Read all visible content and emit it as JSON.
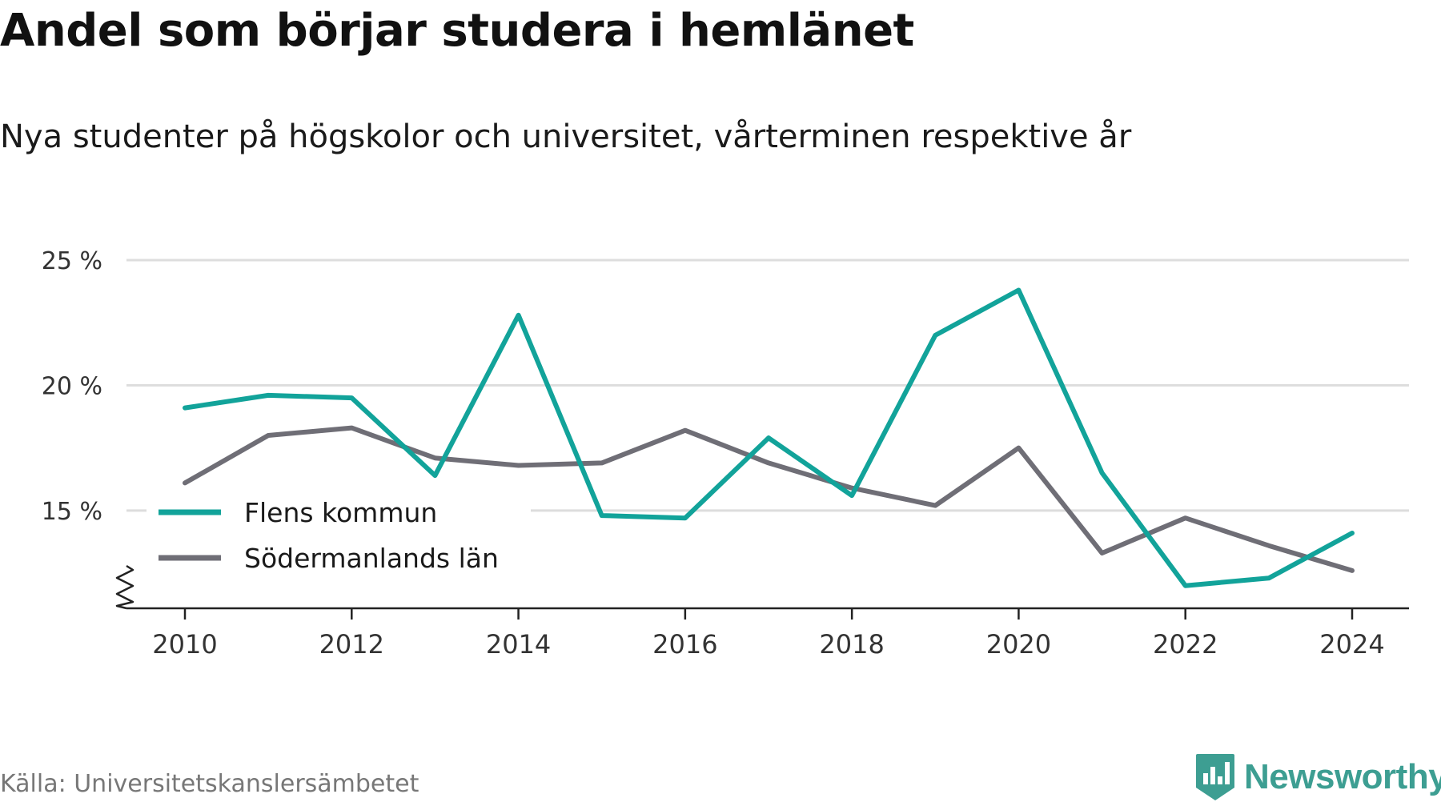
{
  "chart_data": {
    "type": "line",
    "title": "Andel som börjar studera i hemlänet",
    "subtitle": "Nya studenter på högskolor och universitet, vårterminen respektive år",
    "x": [
      2010,
      2011,
      2012,
      2013,
      2014,
      2015,
      2016,
      2017,
      2018,
      2019,
      2020,
      2021,
      2022,
      2023,
      2024
    ],
    "series": [
      {
        "name": "Flens kommun",
        "color": "#12a39a",
        "values": [
          19.1,
          19.6,
          19.5,
          16.4,
          22.8,
          14.8,
          14.7,
          17.9,
          15.6,
          22.0,
          23.8,
          16.5,
          12.0,
          12.3,
          14.1
        ]
      },
      {
        "name": "Södermanlands län",
        "color": "#6f6e76",
        "values": [
          16.1,
          18.0,
          18.3,
          17.1,
          16.8,
          16.9,
          18.2,
          16.9,
          15.9,
          15.2,
          17.5,
          13.3,
          14.7,
          13.6,
          12.6
        ]
      }
    ],
    "xticks": [
      "2010",
      "2012",
      "2014",
      "2016",
      "2018",
      "2020",
      "2022",
      "2024"
    ],
    "yticks": [
      "15 %",
      "20 %",
      "25 %"
    ],
    "ytick_values": [
      15,
      20,
      25
    ],
    "xlim": [
      2010,
      2024
    ],
    "ylim": [
      11,
      25
    ],
    "axis_break": true,
    "grid": true,
    "legend_position": "bottom-left"
  },
  "footer": {
    "source": "Källa: Universitetskanslersämbetet",
    "brand": "Newsworthy",
    "brand_color": "#3d9e92",
    "brand_icon": "bar-chart-badge-icon"
  }
}
